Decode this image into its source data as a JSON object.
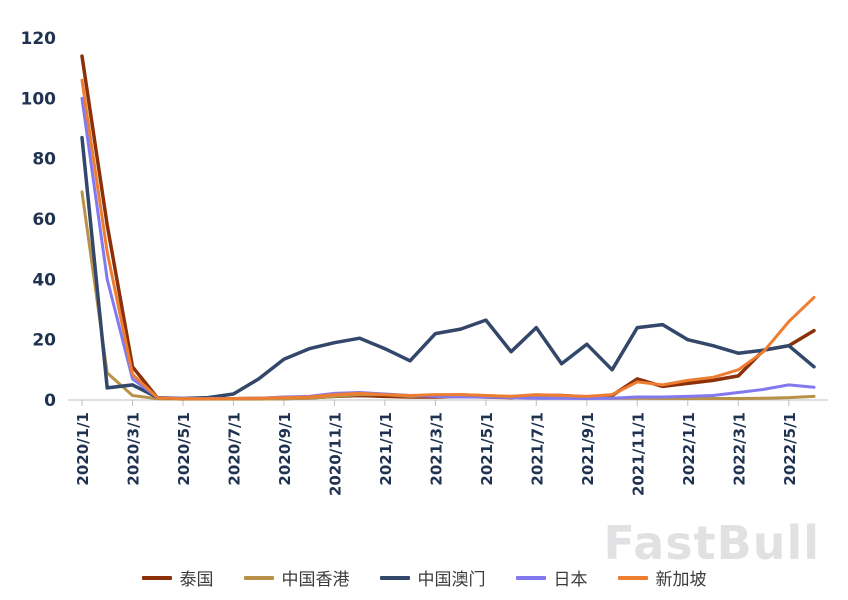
{
  "watermark": "FastBull",
  "chart_data": {
    "type": "line",
    "title": "",
    "xlabel": "",
    "ylabel": "",
    "ylim": [
      0,
      120
    ],
    "yticks": [
      0,
      20,
      40,
      60,
      80,
      100,
      120
    ],
    "grid": false,
    "legend_position": "bottom",
    "x_tick_every": 2,
    "x": [
      "2020/1/1",
      "2020/2/1",
      "2020/3/1",
      "2020/4/1",
      "2020/5/1",
      "2020/6/1",
      "2020/7/1",
      "2020/8/1",
      "2020/9/1",
      "2020/10/1",
      "2020/11/1",
      "2020/12/1",
      "2021/1/1",
      "2021/2/1",
      "2021/3/1",
      "2021/4/1",
      "2021/5/1",
      "2021/6/1",
      "2021/7/1",
      "2021/8/1",
      "2021/9/1",
      "2021/10/1",
      "2021/11/1",
      "2021/12/1",
      "2022/1/1",
      "2022/2/1",
      "2022/3/1",
      "2022/4/1",
      "2022/5/1",
      "2022/6/1"
    ],
    "series": [
      {
        "name": "泰国",
        "color": "#8b3008",
        "width": 3.5,
        "values": [
          114,
          58,
          11,
          0.6,
          0.4,
          0.4,
          0.4,
          0.5,
          0.5,
          0.7,
          1.2,
          1.5,
          1.2,
          1,
          1,
          1.2,
          1,
          0.8,
          1.5,
          1.5,
          1,
          1.5,
          7,
          4.5,
          5.5,
          6.5,
          8,
          16.5,
          18,
          23
        ]
      },
      {
        "name": "中国香港",
        "color": "#b9924a",
        "width": 3,
        "values": [
          69,
          9,
          1.5,
          0.4,
          0.3,
          0.3,
          0.3,
          0.3,
          0.4,
          0.6,
          1.2,
          1.8,
          1.8,
          1.2,
          1.5,
          1.8,
          1.5,
          1.2,
          1,
          1.2,
          0.8,
          0.6,
          0.6,
          0.5,
          0.5,
          0.5,
          0.5,
          0.6,
          0.8,
          1.2
        ]
      },
      {
        "name": "中国澳门",
        "color": "#33476b",
        "width": 3.5,
        "values": [
          87,
          4,
          5,
          0.8,
          0.5,
          0.8,
          2,
          7,
          13.5,
          17,
          19,
          20.5,
          17,
          13,
          22,
          23.5,
          26.5,
          16,
          24,
          12,
          18.5,
          10,
          24,
          25,
          20,
          18,
          15.5,
          16.5,
          18,
          11
        ]
      },
      {
        "name": "日本",
        "color": "#8379ee",
        "width": 3,
        "values": [
          100,
          40,
          7,
          0.8,
          0.5,
          0.5,
          0.5,
          0.6,
          1,
          1.2,
          2.2,
          2.5,
          2,
          1.5,
          1.2,
          1,
          1,
          0.8,
          0.6,
          0.6,
          0.5,
          0.6,
          1,
          1,
          1.2,
          1.5,
          2.5,
          3.5,
          5,
          4.2
        ]
      },
      {
        "name": "新加坡",
        "color": "#ed7d31",
        "width": 3,
        "values": [
          106,
          49,
          8.5,
          0.7,
          0.4,
          0.4,
          0.5,
          0.6,
          0.8,
          1,
          1.8,
          2.2,
          1.8,
          1.5,
          1.8,
          1.8,
          1.5,
          1.2,
          1.8,
          1.5,
          1.2,
          1.8,
          6,
          5,
          6.5,
          7.5,
          10,
          16,
          26,
          34
        ]
      }
    ]
  }
}
